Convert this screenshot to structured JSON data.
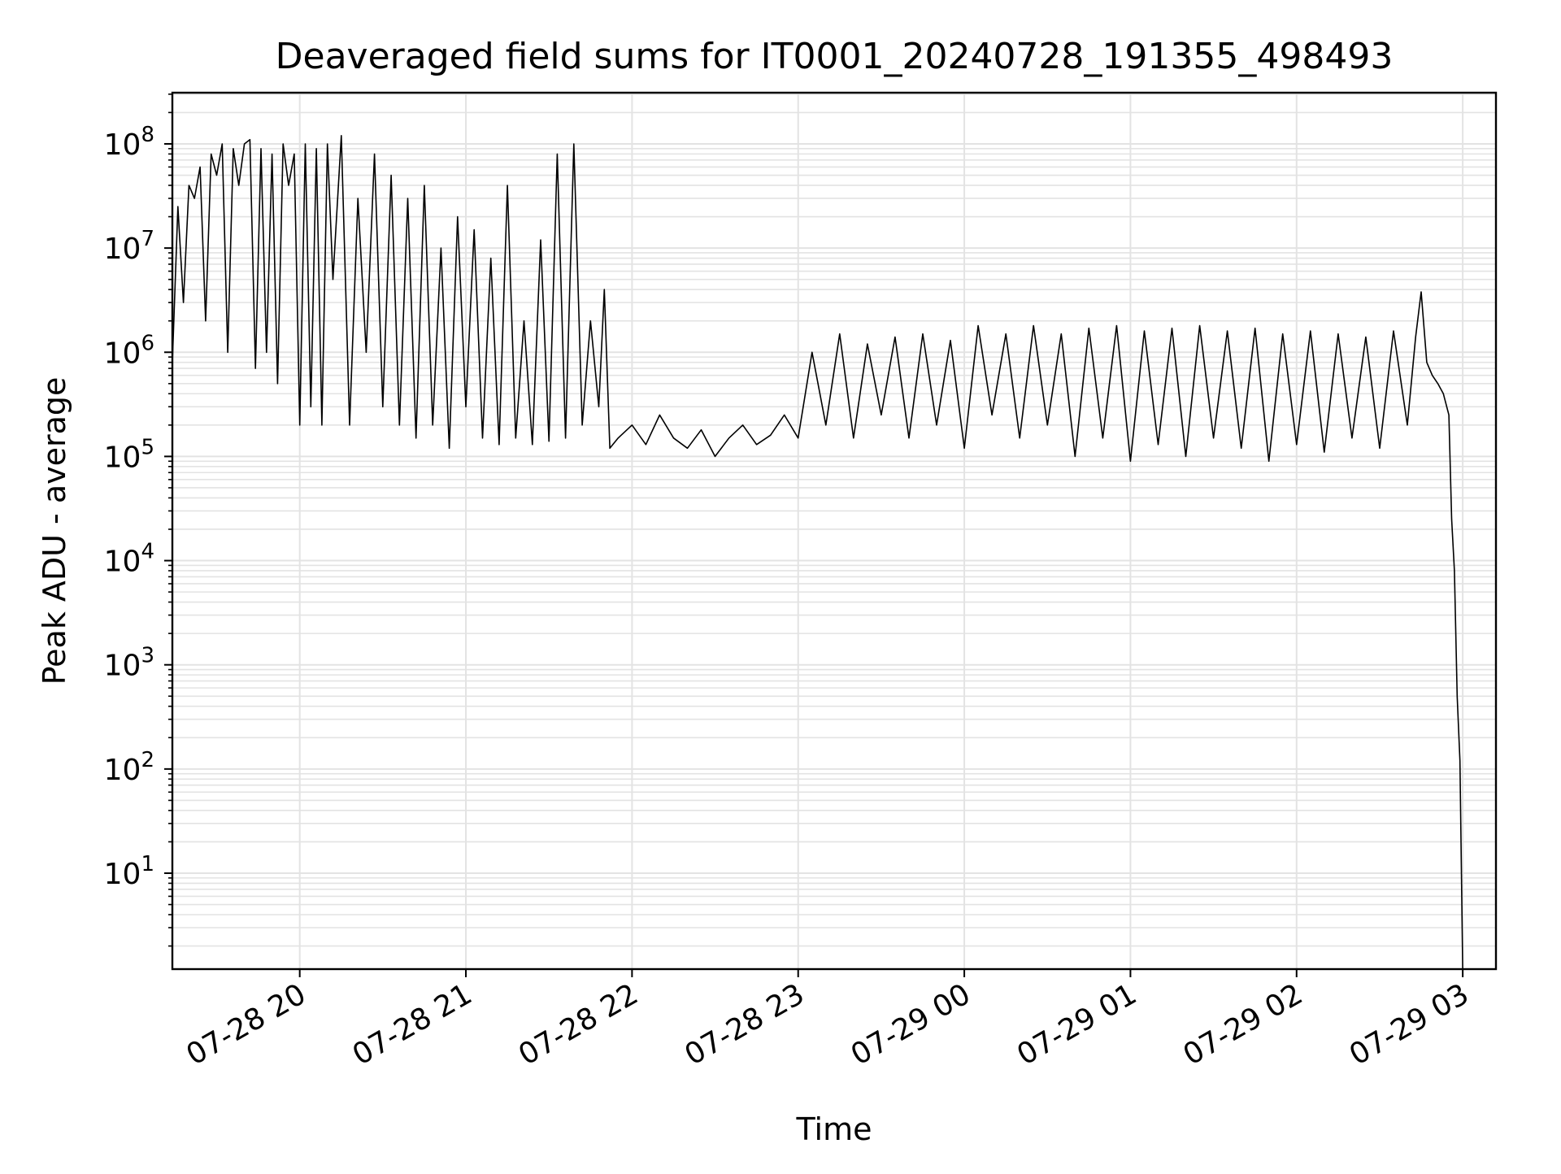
{
  "chart_data": {
    "type": "line",
    "title": "Deaveraged field sums for IT0001_20240728_191355_498493",
    "xlabel": "Time",
    "ylabel": "Peak ADU - average",
    "yscale": "log",
    "xlim": [
      "2024-07-28 19:14",
      "2024-07-29 03:12"
    ],
    "ylim": [
      1.2,
      310000000
    ],
    "grid": {
      "major": true,
      "minor_y": true,
      "color": "#e3e3e3"
    },
    "line_color": "#000000",
    "x_ticks": [
      "07-28 20",
      "07-28 21",
      "07-28 22",
      "07-28 23",
      "07-29 00",
      "07-29 01",
      "07-29 02",
      "07-29 03"
    ],
    "y_ticks": [
      {
        "base": "10",
        "exp": "1"
      },
      {
        "base": "10",
        "exp": "2"
      },
      {
        "base": "10",
        "exp": "3"
      },
      {
        "base": "10",
        "exp": "4"
      },
      {
        "base": "10",
        "exp": "5"
      },
      {
        "base": "10",
        "exp": "6"
      },
      {
        "base": "10",
        "exp": "7"
      },
      {
        "base": "10",
        "exp": "8"
      }
    ],
    "series": [
      {
        "x": [
          "2024-07-28 19:14",
          "2024-07-28 19:16",
          "2024-07-28 19:18",
          "2024-07-28 19:20",
          "2024-07-28 19:22",
          "2024-07-28 19:24",
          "2024-07-28 19:26",
          "2024-07-28 19:28",
          "2024-07-28 19:30",
          "2024-07-28 19:32",
          "2024-07-28 19:34",
          "2024-07-28 19:36",
          "2024-07-28 19:38",
          "2024-07-28 19:40",
          "2024-07-28 19:42",
          "2024-07-28 19:44",
          "2024-07-28 19:46",
          "2024-07-28 19:48",
          "2024-07-28 19:50",
          "2024-07-28 19:52",
          "2024-07-28 19:54",
          "2024-07-28 19:56",
          "2024-07-28 19:58",
          "2024-07-28 20:00",
          "2024-07-28 20:02",
          "2024-07-28 20:04",
          "2024-07-28 20:06",
          "2024-07-28 20:08",
          "2024-07-28 20:10",
          "2024-07-28 20:12",
          "2024-07-28 20:15",
          "2024-07-28 20:18",
          "2024-07-28 20:21",
          "2024-07-28 20:24",
          "2024-07-28 20:27",
          "2024-07-28 20:30",
          "2024-07-28 20:33",
          "2024-07-28 20:36",
          "2024-07-28 20:39",
          "2024-07-28 20:42",
          "2024-07-28 20:45",
          "2024-07-28 20:48",
          "2024-07-28 20:51",
          "2024-07-28 20:54",
          "2024-07-28 20:57",
          "2024-07-28 21:00",
          "2024-07-28 21:03",
          "2024-07-28 21:06",
          "2024-07-28 21:09",
          "2024-07-28 21:12",
          "2024-07-28 21:15",
          "2024-07-28 21:18",
          "2024-07-28 21:21",
          "2024-07-28 21:24",
          "2024-07-28 21:27",
          "2024-07-28 21:30",
          "2024-07-28 21:33",
          "2024-07-28 21:36",
          "2024-07-28 21:39",
          "2024-07-28 21:42",
          "2024-07-28 21:45",
          "2024-07-28 21:48",
          "2024-07-28 21:50",
          "2024-07-28 21:52",
          "2024-07-28 21:55",
          "2024-07-28 22:00",
          "2024-07-28 22:05",
          "2024-07-28 22:10",
          "2024-07-28 22:15",
          "2024-07-28 22:20",
          "2024-07-28 22:25",
          "2024-07-28 22:30",
          "2024-07-28 22:35",
          "2024-07-28 22:40",
          "2024-07-28 22:45",
          "2024-07-28 22:50",
          "2024-07-28 22:55",
          "2024-07-28 23:00",
          "2024-07-28 23:05",
          "2024-07-28 23:10",
          "2024-07-28 23:15",
          "2024-07-28 23:20",
          "2024-07-28 23:25",
          "2024-07-28 23:30",
          "2024-07-28 23:35",
          "2024-07-28 23:40",
          "2024-07-28 23:45",
          "2024-07-28 23:50",
          "2024-07-28 23:55",
          "2024-07-29 00:00",
          "2024-07-29 00:05",
          "2024-07-29 00:10",
          "2024-07-29 00:15",
          "2024-07-29 00:20",
          "2024-07-29 00:25",
          "2024-07-29 00:30",
          "2024-07-29 00:35",
          "2024-07-29 00:40",
          "2024-07-29 00:45",
          "2024-07-29 00:50",
          "2024-07-29 00:55",
          "2024-07-29 01:00",
          "2024-07-29 01:05",
          "2024-07-29 01:10",
          "2024-07-29 01:15",
          "2024-07-29 01:20",
          "2024-07-29 01:25",
          "2024-07-29 01:30",
          "2024-07-29 01:35",
          "2024-07-29 01:40",
          "2024-07-29 01:45",
          "2024-07-29 01:50",
          "2024-07-29 01:55",
          "2024-07-29 02:00",
          "2024-07-29 02:05",
          "2024-07-29 02:10",
          "2024-07-29 02:15",
          "2024-07-29 02:20",
          "2024-07-29 02:25",
          "2024-07-29 02:30",
          "2024-07-29 02:35",
          "2024-07-29 02:40",
          "2024-07-29 02:43",
          "2024-07-29 02:45",
          "2024-07-29 02:47",
          "2024-07-29 02:49",
          "2024-07-29 02:51",
          "2024-07-29 02:53",
          "2024-07-29 02:55",
          "2024-07-29 02:56",
          "2024-07-29 02:57",
          "2024-07-29 02:58",
          "2024-07-29 02:59",
          "2024-07-29 03:00"
        ],
        "y": [
          800000,
          25000000,
          3000000,
          40000000,
          30000000,
          60000000,
          2000000,
          80000000,
          50000000,
          100000000,
          1000000,
          90000000,
          40000000,
          100000000,
          110000000,
          700000,
          90000000,
          1000000,
          80000000,
          500000,
          100000000,
          40000000,
          80000000,
          200000,
          100000000,
          300000,
          90000000,
          200000,
          100000000,
          5000000,
          120000000,
          200000,
          30000000,
          1000000,
          80000000,
          300000,
          50000000,
          200000,
          30000000,
          150000,
          40000000,
          200000,
          10000000,
          120000,
          20000000,
          300000,
          15000000,
          150000,
          8000000,
          130000,
          40000000,
          150000,
          2000000,
          130000,
          12000000,
          140000,
          80000000,
          150000,
          100000000,
          200000,
          2000000,
          300000,
          4000000,
          120000,
          150000,
          200000,
          130000,
          250000,
          150000,
          120000,
          180000,
          100000,
          150000,
          200000,
          130000,
          160000,
          250000,
          150000,
          1000000,
          200000,
          1500000,
          150000,
          1200000,
          250000,
          1400000,
          150000,
          1500000,
          200000,
          1300000,
          120000,
          1800000,
          250000,
          1500000,
          150000,
          1800000,
          200000,
          1500000,
          100000,
          1700000,
          150000,
          1800000,
          90000,
          1600000,
          130000,
          1700000,
          100000,
          1800000,
          150000,
          1600000,
          120000,
          1700000,
          90000,
          1500000,
          130000,
          1600000,
          110000,
          1500000,
          150000,
          1400000,
          120000,
          1600000,
          200000,
          1400000,
          3800000,
          800000,
          600000,
          500000,
          400000,
          250000,
          25000,
          8000,
          500,
          120,
          1.2
        ]
      }
    ]
  }
}
